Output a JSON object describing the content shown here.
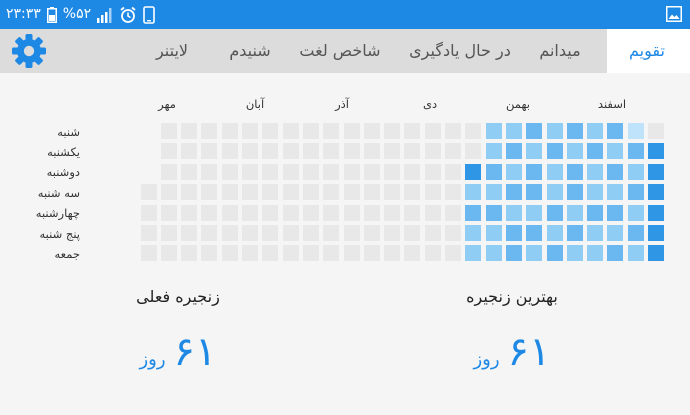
{
  "status_bar": {
    "time": "۲۳:۳۳",
    "battery": "%۵۲",
    "icons": [
      "phone-icon",
      "alarm-icon",
      "battery-icon",
      "signal-icon",
      "image-notification-icon"
    ]
  },
  "tabs": [
    {
      "label": "تقویم",
      "active": true
    },
    {
      "label": "میدانم",
      "active": false
    },
    {
      "label": "در حال یادگیری",
      "active": false
    },
    {
      "label": "شاخص لغت",
      "active": false
    },
    {
      "label": "شنیدم",
      "active": false
    },
    {
      "label": "لایتنر",
      "active": false
    }
  ],
  "settings_icon": "gear-icon",
  "calendar": {
    "months": [
      "اسفند",
      "بهمن",
      "دی",
      "آذر",
      "آبان",
      "مهر"
    ],
    "days": [
      "شنبه",
      "یکشنبه",
      "دوشنبه",
      "سه شنبه",
      "چهارشنبه",
      "پنج شنبه",
      "جمعه"
    ],
    "colors": {
      "0": "#e8e8e8",
      "1": "#bfe3fb",
      "2": "#90cdf4",
      "3": "#6bb8f0",
      "4": "#2f96e6"
    },
    "weeks_right_to_left": [
      [
        0,
        4,
        4,
        4,
        4,
        4,
        4
      ],
      [
        1,
        3,
        2,
        3,
        2,
        3,
        2
      ],
      [
        3,
        2,
        3,
        2,
        3,
        2,
        3
      ],
      [
        2,
        3,
        2,
        2,
        3,
        2,
        2
      ],
      [
        3,
        2,
        3,
        3,
        2,
        3,
        2
      ],
      [
        2,
        3,
        2,
        2,
        3,
        2,
        3
      ],
      [
        3,
        2,
        3,
        3,
        2,
        3,
        2
      ],
      [
        2,
        3,
        2,
        3,
        2,
        3,
        3
      ],
      [
        2,
        2,
        3,
        2,
        3,
        2,
        2
      ],
      [
        0,
        0,
        4,
        2,
        3,
        2,
        2
      ],
      [
        0,
        0,
        0,
        0,
        0,
        0,
        0
      ],
      [
        0,
        0,
        0,
        0,
        0,
        0,
        0
      ],
      [
        0,
        0,
        0,
        0,
        0,
        0,
        0
      ],
      [
        0,
        0,
        0,
        0,
        0,
        0,
        0
      ],
      [
        0,
        0,
        0,
        0,
        0,
        0,
        0
      ],
      [
        0,
        0,
        0,
        0,
        0,
        0,
        0
      ],
      [
        0,
        0,
        0,
        0,
        0,
        0,
        0
      ],
      [
        0,
        0,
        0,
        0,
        0,
        0,
        0
      ],
      [
        0,
        0,
        0,
        0,
        0,
        0,
        0
      ],
      [
        0,
        0,
        0,
        0,
        0,
        0,
        0
      ],
      [
        0,
        0,
        0,
        0,
        0,
        0,
        0
      ],
      [
        0,
        0,
        0,
        0,
        0,
        0,
        0
      ],
      [
        0,
        0,
        0,
        0,
        0,
        0,
        0
      ],
      [
        0,
        0,
        0,
        0,
        0,
        0,
        0
      ],
      [
        0,
        0,
        0,
        0,
        0,
        0,
        0
      ],
      [
        null,
        null,
        null,
        0,
        0,
        0,
        0
      ]
    ]
  },
  "streaks": {
    "best": {
      "title": "بهترین زنجیره",
      "value": "۶۱",
      "unit": "روز"
    },
    "current": {
      "title": "زنجیره فعلی",
      "value": "۶۱",
      "unit": "روز"
    }
  }
}
